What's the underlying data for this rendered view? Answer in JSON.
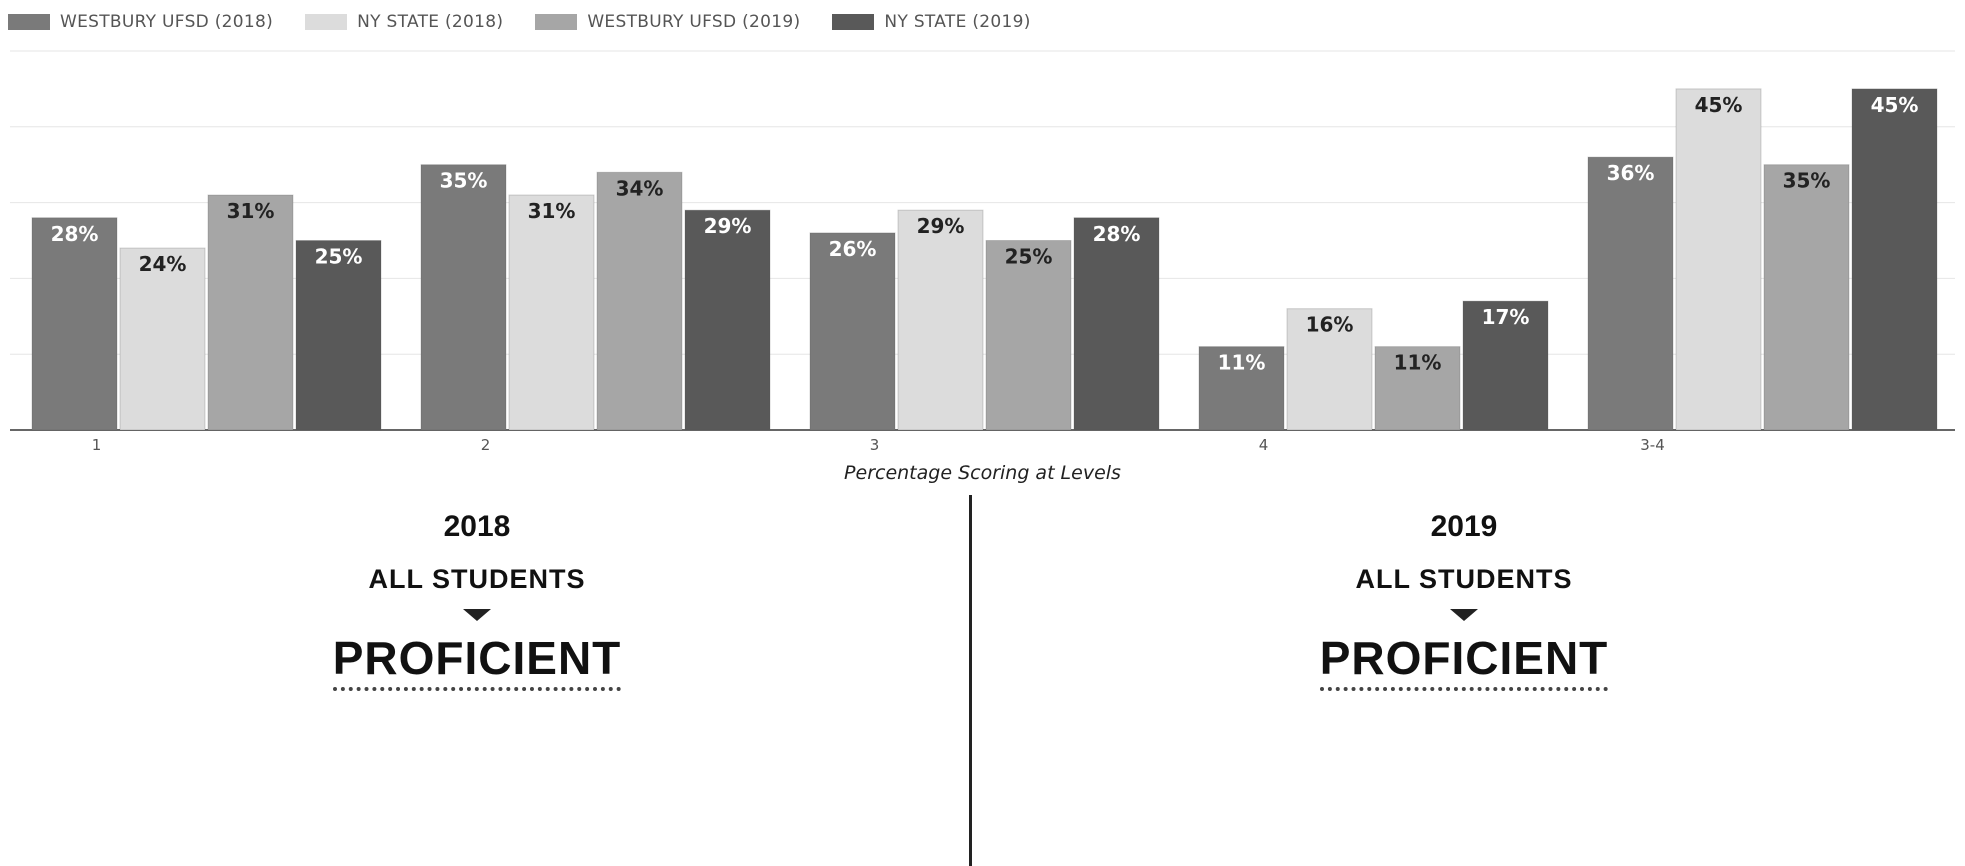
{
  "legend": [
    {
      "label": "WESTBURY UFSD (2018)",
      "color": "#7a7a7a"
    },
    {
      "label": "NY STATE (2018)",
      "color": "#dcdcdc"
    },
    {
      "label": "WESTBURY UFSD (2019)",
      "color": "#a6a6a6"
    },
    {
      "label": "NY STATE (2019)",
      "color": "#595959"
    }
  ],
  "chart_data": {
    "type": "bar",
    "categories": [
      "1",
      "2",
      "3",
      "4",
      "3-4"
    ],
    "series": [
      {
        "name": "WESTBURY UFSD (2018)",
        "values": [
          28,
          35,
          26,
          11,
          36
        ],
        "color": "#7a7a7a",
        "label_color": "#ffffff"
      },
      {
        "name": "NY STATE (2018)",
        "values": [
          24,
          31,
          29,
          16,
          45
        ],
        "color": "#dcdcdc",
        "label_color": "#222222"
      },
      {
        "name": "WESTBURY UFSD (2019)",
        "values": [
          31,
          34,
          25,
          11,
          35
        ],
        "color": "#a6a6a6",
        "label_color": "#222222"
      },
      {
        "name": "NY STATE (2019)",
        "values": [
          25,
          29,
          28,
          17,
          45
        ],
        "color": "#595959",
        "label_color": "#ffffff"
      }
    ],
    "value_suffix": "%",
    "xlabel": "Percentage Scoring at Levels",
    "ylabel": "",
    "ylim": [
      0,
      50
    ],
    "grid": true,
    "legend_position": "top-left"
  },
  "panels": [
    {
      "year": "2018",
      "subtitle": "ALL STUDENTS",
      "main": "PROFICIENT"
    },
    {
      "year": "2019",
      "subtitle": "ALL STUDENTS",
      "main": "PROFICIENT"
    }
  ]
}
